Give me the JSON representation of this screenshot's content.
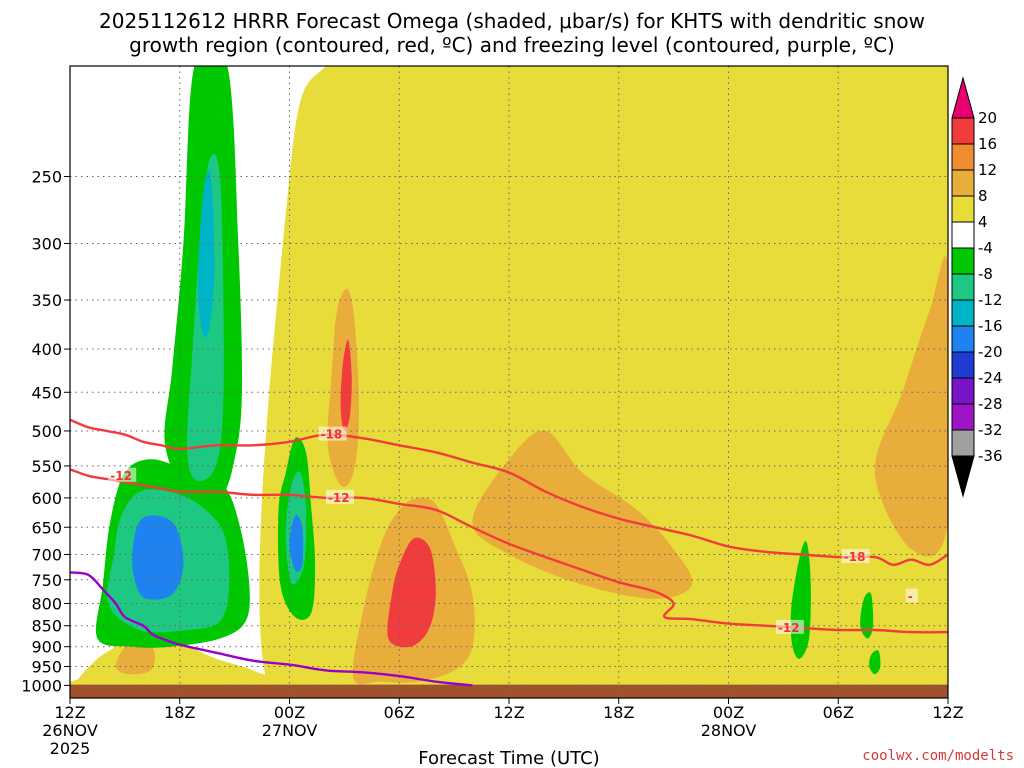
{
  "chart_data": {
    "type": "heatmap",
    "title_line1": "2025112612 HRRR Forecast Omega (shaded, μbar/s) for KHTS with dendritic snow",
    "title_line2": "growth region (contoured, red, ºC) and freezing level (contoured, purple, ºC)",
    "xlabel": "Forecast Time (UTC)",
    "ylabel": "",
    "credit": "coolwx.com/modelts",
    "x_hours": [
      0,
      48
    ],
    "y_range_mb": [
      1035,
      185
    ],
    "pressure_ticks": [
      250,
      300,
      350,
      400,
      450,
      500,
      550,
      600,
      650,
      700,
      750,
      800,
      850,
      900,
      950,
      1000
    ],
    "x_ticks": [
      {
        "hour": 0,
        "label": "12Z",
        "date": "26NOV",
        "year": "2025"
      },
      {
        "hour": 6,
        "label": "18Z"
      },
      {
        "hour": 12,
        "label": "00Z",
        "date": "27NOV"
      },
      {
        "hour": 18,
        "label": "06Z"
      },
      {
        "hour": 24,
        "label": "12Z"
      },
      {
        "hour": 30,
        "label": "18Z"
      },
      {
        "hour": 36,
        "label": "00Z",
        "date": "28NOV"
      },
      {
        "hour": 42,
        "label": "06Z"
      },
      {
        "hour": 48,
        "label": "12Z"
      }
    ],
    "colorbar": {
      "labels": [
        "20",
        "16",
        "12",
        "8",
        "4",
        "-4",
        "-8",
        "-12",
        "-16",
        "-20",
        "-24",
        "-28",
        "-32",
        "-36"
      ],
      "bins": [
        {
          "range": [
            20,
            99
          ],
          "color": "#e8006e"
        },
        {
          "range": [
            16,
            20
          ],
          "color": "#f03c3c"
        },
        {
          "range": [
            12,
            16
          ],
          "color": "#ef8c32"
        },
        {
          "range": [
            8,
            12
          ],
          "color": "#e9ad3c"
        },
        {
          "range": [
            4,
            8
          ],
          "color": "#e8dc3a"
        },
        {
          "range": [
            -4,
            4
          ],
          "color": "#ffffff"
        },
        {
          "range": [
            -8,
            -4
          ],
          "color": "#00c800"
        },
        {
          "range": [
            -12,
            -8
          ],
          "color": "#1ec882"
        },
        {
          "range": [
            -16,
            -12
          ],
          "color": "#00b4c8"
        },
        {
          "range": [
            -20,
            -16
          ],
          "color": "#1e82f0"
        },
        {
          "range": [
            -24,
            -20
          ],
          "color": "#1e3cd2"
        },
        {
          "range": [
            -28,
            -24
          ],
          "color": "#7814c8"
        },
        {
          "range": [
            -32,
            -28
          ],
          "color": "#a014c8"
        },
        {
          "range": [
            -36,
            -32
          ],
          "color": "#a0a0a0"
        },
        {
          "range": [
            -99,
            -36
          ],
          "color": "#000000"
        }
      ]
    },
    "omega_regions": [
      {
        "name": "ascent-band-yellow-main",
        "value": 5,
        "pts": [
          [
            10.8,
            1000
          ],
          [
            12,
            250
          ],
          [
            14,
            185
          ],
          [
            18,
            185
          ],
          [
            24,
            185
          ],
          [
            28,
            185
          ],
          [
            36,
            185
          ],
          [
            44,
            185
          ],
          [
            48,
            185
          ],
          [
            48,
            1000
          ],
          [
            32,
            1000
          ],
          [
            20,
            1000
          ]
        ]
      },
      {
        "name": "ascent-yellow-lowlevel-left",
        "value": 5,
        "pts": [
          [
            0.5,
            980
          ],
          [
            1.5,
            930
          ],
          [
            2.5,
            900
          ],
          [
            3.5,
            870
          ],
          [
            5,
            880
          ],
          [
            6.5,
            900
          ],
          [
            8,
            930
          ],
          [
            10,
            960
          ],
          [
            11,
            1000
          ],
          [
            0.5,
            1000
          ]
        ]
      },
      {
        "name": "ascent-orange-0630z",
        "value": 10,
        "pts": [
          [
            15.5,
            980
          ],
          [
            16,
            820
          ],
          [
            17,
            680
          ],
          [
            18,
            620
          ],
          [
            19,
            600
          ],
          [
            20,
            610
          ],
          [
            21,
            680
          ],
          [
            22,
            780
          ],
          [
            22,
            900
          ],
          [
            21,
            960
          ],
          [
            19,
            990
          ],
          [
            17,
            990
          ]
        ]
      },
      {
        "name": "ascent-red-0630z",
        "value": 17,
        "pts": [
          [
            17.4,
            880
          ],
          [
            17.6,
            780
          ],
          [
            18,
            720
          ],
          [
            18.8,
            670
          ],
          [
            19.7,
            690
          ],
          [
            20,
            780
          ],
          [
            19.6,
            860
          ],
          [
            18.6,
            900
          ]
        ]
      },
      {
        "name": "ascent-orange-0330z",
        "value": 10,
        "pts": [
          [
            14.1,
            520
          ],
          [
            14.3,
            430
          ],
          [
            14.6,
            360
          ],
          [
            15.2,
            340
          ],
          [
            15.6,
            380
          ],
          [
            15.8,
            480
          ],
          [
            15.5,
            560
          ],
          [
            14.8,
            580
          ]
        ]
      },
      {
        "name": "ascent-red-0330z",
        "value": 17,
        "pts": [
          [
            14.8,
            470
          ],
          [
            14.9,
            420
          ],
          [
            15.2,
            390
          ],
          [
            15.4,
            430
          ],
          [
            15.3,
            480
          ],
          [
            15,
            500
          ]
        ]
      },
      {
        "name": "ascent-orange-mid-plume",
        "value": 10,
        "pts": [
          [
            22,
            640
          ],
          [
            24,
            540
          ],
          [
            26,
            500
          ],
          [
            28,
            560
          ],
          [
            31,
            620
          ],
          [
            33,
            690
          ],
          [
            34,
            760
          ],
          [
            32,
            790
          ],
          [
            28,
            760
          ],
          [
            24,
            700
          ]
        ]
      },
      {
        "name": "ascent-orange-right-upper",
        "value": 10,
        "pts": [
          [
            44,
            560
          ],
          [
            45.5,
            450
          ],
          [
            47,
            360
          ],
          [
            48,
            320
          ],
          [
            48,
            640
          ],
          [
            46,
            690
          ]
        ]
      },
      {
        "name": "ascent-orange-lowleft",
        "value": 10,
        "pts": [
          [
            2.5,
            950
          ],
          [
            3,
            900
          ],
          [
            3.8,
            880
          ],
          [
            4.6,
            910
          ],
          [
            4.4,
            960
          ],
          [
            3.2,
            970
          ]
        ]
      },
      {
        "name": "descent-green-upper-plume",
        "value": -6,
        "pts": [
          [
            5.2,
            520
          ],
          [
            5.6,
            420
          ],
          [
            6.2,
            300
          ],
          [
            6.8,
            185
          ],
          [
            8.6,
            185
          ],
          [
            9.2,
            300
          ],
          [
            9.4,
            450
          ],
          [
            9,
            540
          ],
          [
            8.2,
            600
          ],
          [
            6.6,
            600
          ]
        ]
      },
      {
        "name": "descent-green-low-left",
        "value": -6,
        "pts": [
          [
            1.5,
            880
          ],
          [
            1.8,
            760
          ],
          [
            2.2,
            640
          ],
          [
            3,
            560
          ],
          [
            4.5,
            540
          ],
          [
            6.6,
            560
          ],
          [
            8.4,
            580
          ],
          [
            9.3,
            650
          ],
          [
            9.8,
            760
          ],
          [
            9.6,
            840
          ],
          [
            8.2,
            880
          ],
          [
            5.5,
            900
          ],
          [
            3.4,
            900
          ]
        ]
      },
      {
        "name": "descent-green-right-lobe",
        "value": -6,
        "pts": [
          [
            11.4,
            620
          ],
          [
            11.8,
            560
          ],
          [
            12.3,
            510
          ],
          [
            12.9,
            530
          ],
          [
            13.2,
            620
          ],
          [
            13.4,
            720
          ],
          [
            13.2,
            820
          ],
          [
            12.3,
            830
          ],
          [
            11.5,
            760
          ]
        ]
      },
      {
        "name": "descent-green-0530z-cell",
        "value": -6,
        "pts": [
          [
            39.4,
            830
          ],
          [
            39.6,
            760
          ],
          [
            40,
            690
          ],
          [
            40.3,
            680
          ],
          [
            40.5,
            760
          ],
          [
            40.4,
            880
          ],
          [
            39.9,
            930
          ],
          [
            39.5,
            900
          ]
        ]
      },
      {
        "name": "descent-green-small-0900z",
        "value": -6,
        "pts": [
          [
            43.2,
            850
          ],
          [
            43.4,
            790
          ],
          [
            43.8,
            780
          ],
          [
            43.9,
            850
          ],
          [
            43.6,
            880
          ]
        ]
      },
      {
        "name": "descent-green-small-1000z",
        "value": -6,
        "pts": [
          [
            43.7,
            950
          ],
          [
            43.8,
            920
          ],
          [
            44.2,
            910
          ],
          [
            44.3,
            950
          ],
          [
            44,
            970
          ]
        ]
      },
      {
        "name": "descent-teal-low-left",
        "value": -10,
        "pts": [
          [
            2.1,
            800
          ],
          [
            2.4,
            700
          ],
          [
            2.8,
            630
          ],
          [
            3.8,
            590
          ],
          [
            5.4,
            590
          ],
          [
            7,
            610
          ],
          [
            8.4,
            660
          ],
          [
            8.7,
            760
          ],
          [
            8.2,
            840
          ],
          [
            6.4,
            860
          ],
          [
            3.8,
            860
          ]
        ]
      },
      {
        "name": "descent-teal-upper-plume",
        "value": -10,
        "pts": [
          [
            6.4,
            520
          ],
          [
            6.7,
            400
          ],
          [
            7.1,
            300
          ],
          [
            7.6,
            240
          ],
          [
            8.2,
            250
          ],
          [
            8.4,
            380
          ],
          [
            8.3,
            500
          ],
          [
            7.8,
            560
          ],
          [
            6.8,
            570
          ]
        ]
      },
      {
        "name": "descent-teal-right-lobe",
        "value": -10,
        "pts": [
          [
            11.8,
            650
          ],
          [
            12.1,
            580
          ],
          [
            12.6,
            560
          ],
          [
            12.9,
            620
          ],
          [
            12.8,
            720
          ],
          [
            12.2,
            760
          ],
          [
            11.9,
            720
          ]
        ]
      },
      {
        "name": "descent-cyan-upper",
        "value": -14,
        "pts": [
          [
            7.0,
            330
          ],
          [
            7.3,
            260
          ],
          [
            7.7,
            250
          ],
          [
            7.9,
            320
          ],
          [
            7.6,
            380
          ],
          [
            7.2,
            380
          ]
        ]
      },
      {
        "name": "descent-blue-low-left",
        "value": -18,
        "pts": [
          [
            3.4,
            700
          ],
          [
            3.8,
            640
          ],
          [
            4.8,
            630
          ],
          [
            5.8,
            650
          ],
          [
            6.2,
            720
          ],
          [
            5.6,
            780
          ],
          [
            4.2,
            790
          ],
          [
            3.6,
            760
          ]
        ]
      },
      {
        "name": "descent-blue-right-lobe",
        "value": -18,
        "pts": [
          [
            12.0,
            680
          ],
          [
            12.3,
            630
          ],
          [
            12.7,
            650
          ],
          [
            12.7,
            720
          ],
          [
            12.3,
            730
          ]
        ]
      }
    ],
    "isotherm_series": [
      {
        "name": "isotherm -18C",
        "label": "-18",
        "color": "#f03c3c",
        "x": [
          0,
          1,
          2,
          3,
          4,
          5,
          6,
          8,
          10,
          12,
          14,
          16,
          18,
          20,
          22,
          24,
          26,
          28,
          30,
          32,
          34,
          36,
          38,
          40,
          42,
          44,
          45,
          46,
          47,
          48
        ],
        "y": [
          485,
          495,
          500,
          505,
          515,
          520,
          525,
          520,
          520,
          515,
          505,
          510,
          520,
          530,
          545,
          560,
          590,
          615,
          635,
          650,
          665,
          685,
          695,
          700,
          705,
          705,
          720,
          710,
          720,
          700
        ],
        "label_at": [
          13.7,
          505
        ]
      },
      {
        "name": "isotherm -12C",
        "label": "-12",
        "color": "#f03c3c",
        "x": [
          0,
          1,
          2,
          3,
          4,
          5,
          6,
          8,
          10,
          12,
          14,
          16,
          18,
          20,
          22,
          24,
          26,
          28,
          30,
          32,
          33,
          32.5,
          34,
          36,
          38,
          40,
          42,
          44,
          46,
          48
        ],
        "y": [
          555,
          565,
          570,
          575,
          580,
          585,
          590,
          590,
          595,
          595,
          600,
          600,
          610,
          620,
          650,
          680,
          705,
          730,
          755,
          775,
          800,
          830,
          835,
          845,
          850,
          855,
          860,
          860,
          865,
          865
        ],
        "label_at": [
          14.1,
          600
        ]
      },
      {
        "name": "freezing level 0C",
        "label": "",
        "color": "#9a00c8",
        "x": [
          0,
          1,
          1.8,
          2.5,
          3,
          4,
          4.5,
          5,
          6,
          8,
          10,
          12,
          14,
          16,
          18,
          20,
          22
        ],
        "y": [
          735,
          740,
          770,
          800,
          830,
          850,
          870,
          880,
          895,
          915,
          935,
          945,
          960,
          965,
          975,
          990,
          1000
        ]
      }
    ],
    "isotherm_labels": [
      {
        "text": "-12",
        "x": 2.2,
        "y": 565
      },
      {
        "text": "-18",
        "x": 13.7,
        "y": 505
      },
      {
        "text": "-12",
        "x": 14.1,
        "y": 600
      },
      {
        "text": "-18",
        "x": 42.3,
        "y": 705
      },
      {
        "text": "-12",
        "x": 38.7,
        "y": 855
      },
      {
        "text": "-",
        "x": 45.8,
        "y": 785
      }
    ],
    "ground_mb": [
      1035,
      998
    ]
  }
}
